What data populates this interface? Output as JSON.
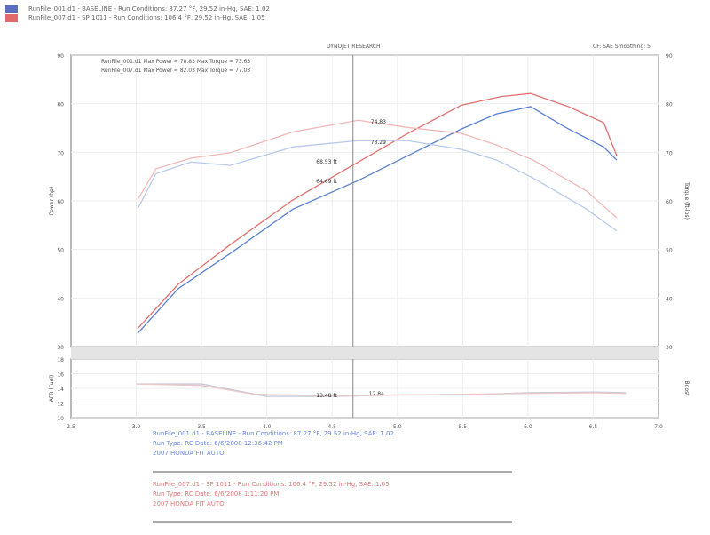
{
  "header": {
    "run1": "RunFile_001.d1 - BASELINE  -  Run Conditions: 87.27 °F, 29.52 in-Hg, SAE: 1.02",
    "run2": "RunFile_007.d1 - SP 1011  -  Run Conditions: 106.4 °F, 29.52 in-Hg, SAE: 1.05",
    "title": "DYNOJET RESEARCH",
    "settings": "CF: SAE   Smoothing: 5"
  },
  "colors": {
    "run1": "#5b7fd0",
    "run2": "#e07070",
    "run1_light": "#b9c9ec",
    "run2_light": "#f0b8b8"
  },
  "legend": [
    "RunFile_001.d1 Max Power = 78.83     Max Torque = 73.63",
    "RunFile_007.d1 Max Power = 82.03     Max Torque = 77.03"
  ],
  "chart_data": [
    {
      "type": "line",
      "ylabel": "Power (hp)",
      "y2label": "Torque (ft-lbs)",
      "xlim": [
        2.5,
        7.0
      ],
      "ylim": [
        30,
        90
      ],
      "xticks": [
        "2.5",
        "3.0",
        "3.5",
        "4.0",
        "4.5",
        "5.0",
        "5.5",
        "6.0",
        "6.5",
        "7.0"
      ],
      "yticks": [
        "90",
        "80",
        "70",
        "60",
        "50",
        "40",
        "30"
      ],
      "cursor_x": 4.66,
      "cursor_labels": [
        "74.83",
        "73.29",
        "68.53 ft",
        "64.69 ft"
      ],
      "series": [
        {
          "name": "RunFile_001.d1 Power",
          "color": "#5b7fd0",
          "x": [
            3.01,
            3.32,
            3.72,
            4.2,
            4.7,
            5.08,
            5.49,
            5.76,
            6.02,
            6.31,
            6.58,
            6.68
          ],
          "y": [
            32.7,
            41.9,
            49.2,
            58.3,
            64.2,
            69.3,
            74.8,
            77.9,
            79.4,
            74.8,
            71.1,
            68.4
          ]
        },
        {
          "name": "RunFile_007.d1 Power",
          "color": "#e07070",
          "x": [
            3.01,
            3.32,
            3.72,
            4.2,
            4.7,
            5.08,
            5.49,
            5.8,
            6.02,
            6.31,
            6.58,
            6.68
          ],
          "y": [
            33.7,
            42.8,
            51,
            60.2,
            68,
            73.9,
            79.7,
            81.5,
            82.1,
            79.4,
            76.1,
            69.3
          ]
        },
        {
          "name": "RunFile_001.d1 Torque",
          "color": "#b9c9ec",
          "x": [
            3.01,
            3.15,
            3.42,
            3.72,
            4.2,
            4.7,
            5.08,
            5.49,
            5.76,
            6.04,
            6.45,
            6.68
          ],
          "y": [
            58.3,
            65.6,
            68,
            67.3,
            71.1,
            72.4,
            72.4,
            70.6,
            68.4,
            64.7,
            58.3,
            53.8
          ]
        },
        {
          "name": "RunFile_007.d1 Torque",
          "color": "#f0b8b8",
          "x": [
            3.01,
            3.15,
            3.42,
            3.72,
            4.2,
            4.7,
            5.08,
            5.49,
            5.76,
            6.04,
            6.45,
            6.68
          ],
          "y": [
            60.2,
            66.6,
            68.8,
            69.9,
            74.2,
            76.6,
            75.1,
            73.9,
            71.5,
            68.4,
            62,
            56.5
          ]
        }
      ]
    },
    {
      "type": "line",
      "ylabel": "AFR (Fuel)",
      "y2label": "Boost",
      "xlim": [
        2.5,
        7.0
      ],
      "ylim": [
        10,
        18
      ],
      "yticks": [
        "18",
        "16",
        "14",
        "12",
        "10"
      ],
      "cursor_labels": [
        "13.48 ft",
        "12.84"
      ],
      "series": [
        {
          "name": "RunFile_001.d1 AFR",
          "color": "#c8c8d8",
          "x": [
            3.0,
            3.5,
            4.0,
            4.5,
            5.0,
            5.5,
            6.0,
            6.5,
            6.75
          ],
          "y": [
            14.6,
            14.6,
            12.9,
            12.9,
            13.1,
            13.1,
            13.4,
            13.5,
            13.4
          ]
        },
        {
          "name": "RunFile_007.d1 AFR",
          "color": "#e8c8c8",
          "x": [
            3.0,
            3.5,
            3.9,
            4.5,
            5.0,
            5.5,
            6.0,
            6.5,
            6.75
          ],
          "y": [
            14.6,
            14.4,
            13.2,
            13.0,
            13.1,
            13.2,
            13.3,
            13.4,
            13.3
          ]
        }
      ]
    }
  ],
  "footer": {
    "run1": [
      "RunFile_001.d1 - BASELINE  -  Run Conditions: 87.27 °F, 29.52 in-Hg, SAE: 1.02",
      "Run Type: RC  Date: 6/6/2008 12:36:42 PM",
      "2007 HONDA FIT AUTO"
    ],
    "run2": [
      "RunFile_007.d1 - SP 1011  -  Run Conditions: 106.4 °F, 29.52 in-Hg, SAE: 1.05",
      "Run Type: RC  Date: 6/6/2008 1:11:20 PM",
      "2007 HONDA FIT AUTO"
    ]
  }
}
